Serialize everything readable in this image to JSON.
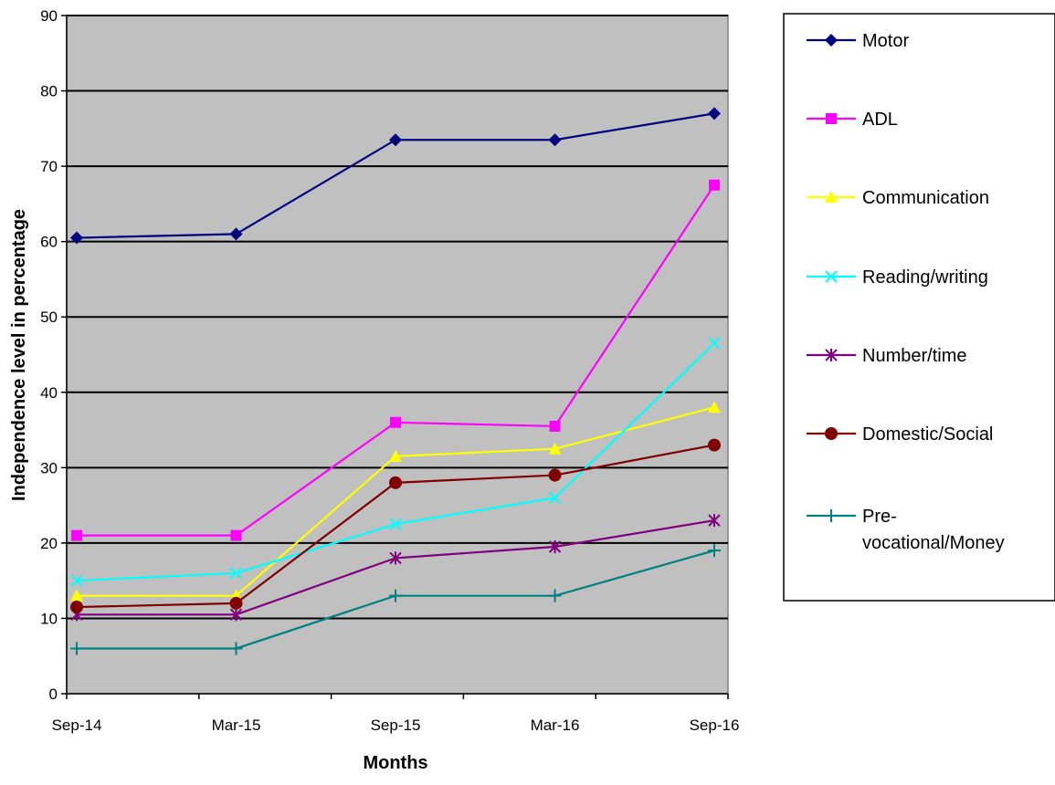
{
  "chart_data": {
    "type": "line",
    "title": "",
    "xlabel": "Months",
    "ylabel": "Independence level in percentage",
    "categories": [
      "Sep-14",
      "Mar-15",
      "Sep-15",
      "Mar-16",
      "Sep-16"
    ],
    "ylim": [
      0,
      90
    ],
    "yticks": [
      0,
      10,
      20,
      30,
      40,
      50,
      60,
      70,
      80,
      90
    ],
    "grid": true,
    "legend_position": "right",
    "plot_background": "#c0c0c0",
    "series": [
      {
        "name": "Motor",
        "color": "#000080",
        "marker": "diamond",
        "values": [
          60.5,
          61,
          73.5,
          73.5,
          77
        ]
      },
      {
        "name": "ADL",
        "color": "#ff00ff",
        "marker": "square",
        "values": [
          21,
          21,
          36,
          35.5,
          67.5
        ]
      },
      {
        "name": "Communication",
        "color": "#ffff00",
        "marker": "triangle",
        "values": [
          13,
          13,
          31.5,
          32.5,
          38
        ]
      },
      {
        "name": "Reading/writing",
        "color": "#00ffff",
        "marker": "x",
        "values": [
          15,
          16,
          22.5,
          26,
          46.5
        ]
      },
      {
        "name": "Number/time",
        "color": "#800080",
        "marker": "star",
        "values": [
          10.5,
          10.5,
          18,
          19.5,
          23
        ]
      },
      {
        "name": "Domestic/Social",
        "color": "#800000",
        "marker": "circle",
        "values": [
          11.5,
          12,
          28,
          29,
          33
        ]
      },
      {
        "name": "Pre-vocational/Money",
        "label_lines": [
          "Pre-",
          "vocational/Money"
        ],
        "color": "#008080",
        "marker": "plus",
        "values": [
          6,
          6,
          13,
          13,
          19
        ]
      }
    ]
  }
}
